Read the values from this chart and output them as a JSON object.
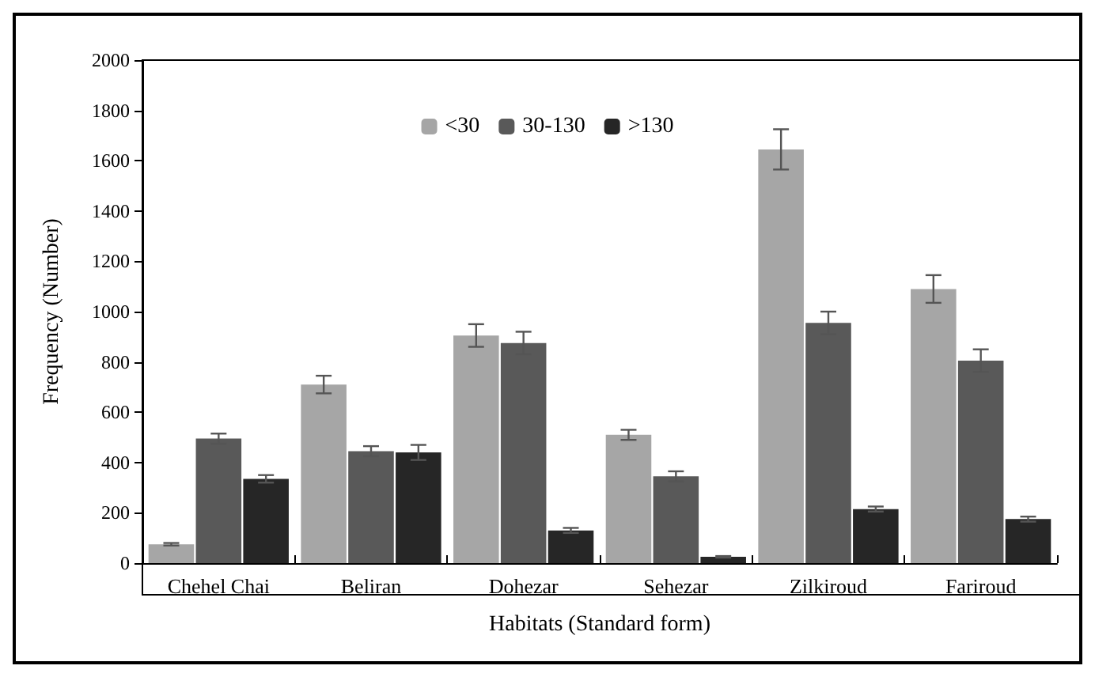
{
  "chart_data": {
    "type": "bar",
    "xlabel": "Habitats (Standard form)",
    "ylabel": "Frequency (Number)",
    "categories": [
      "Chehel Chai",
      "Beliran",
      "Dohezar",
      "Sehezar",
      "Zilkiroud",
      "Fariroud"
    ],
    "series": [
      {
        "name": "<30",
        "color": "#a6a6a6",
        "values": [
          75,
          710,
          905,
          510,
          1645,
          1090
        ],
        "errors": [
          5,
          35,
          45,
          20,
          80,
          55
        ]
      },
      {
        "name": "30-130",
        "color": "#595959",
        "values": [
          495,
          445,
          875,
          345,
          955,
          805
        ],
        "errors": [
          20,
          20,
          45,
          20,
          45,
          45
        ]
      },
      {
        "name": ">130",
        "color": "#262626",
        "values": [
          335,
          440,
          130,
          25,
          215,
          175
        ],
        "errors": [
          15,
          30,
          10,
          3,
          10,
          10
        ]
      }
    ],
    "ylim": [
      0,
      2000
    ],
    "yticks": [
      0,
      200,
      400,
      600,
      800,
      1000,
      1200,
      1400,
      1600,
      1800,
      2000
    ],
    "grid": false,
    "legend": "top"
  }
}
